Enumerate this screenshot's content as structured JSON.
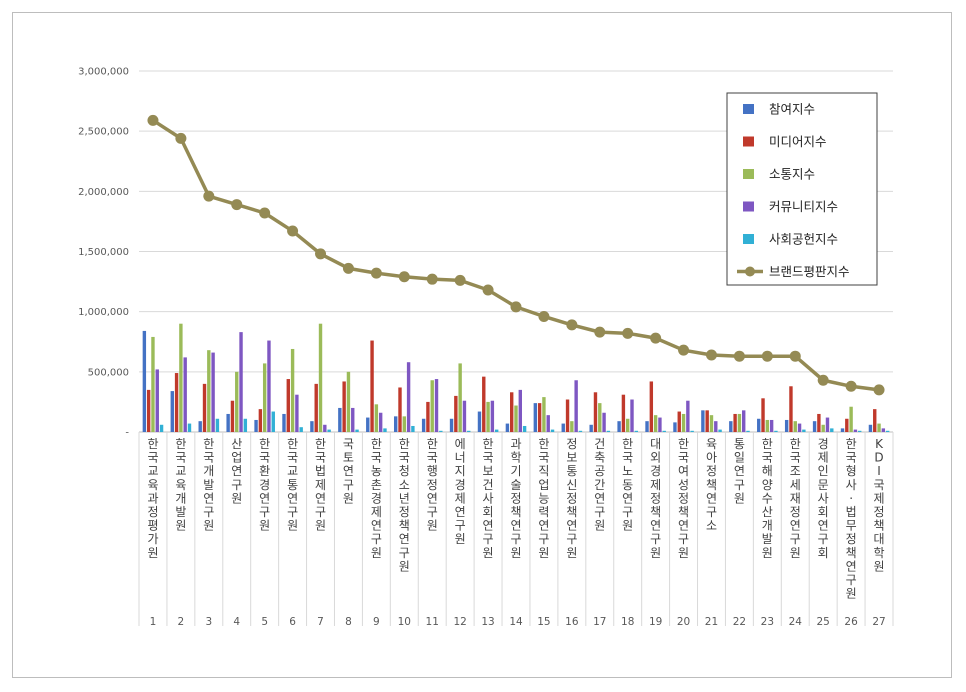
{
  "chart_data": {
    "type": "bar+line",
    "ylim": [
      0,
      3000000
    ],
    "yticks": [
      "-",
      "500,000",
      "1,000,000",
      "1,500,000",
      "2,000,000",
      "2,500,000",
      "3,000,000"
    ],
    "ytick_values": [
      0,
      500000,
      1000000,
      1500000,
      2000000,
      2500000,
      3000000
    ],
    "grid": true,
    "legend_position": "top-right",
    "categories": [
      "한국교육과정평가원",
      "한국교육개발원",
      "한국개발연구원",
      "산업연구원",
      "한국환경연구원",
      "한국교통연구원",
      "한국법제연구원",
      "국토연구원",
      "한국농촌경제연구원",
      "한국청소년정책연구원",
      "한국행정연구원",
      "에너지경제연구원",
      "한국보건사회연구원",
      "과학기술정책연구원",
      "한국직업능력연구원",
      "정보통신정책연구원",
      "건축공간연구원",
      "한국노동연구원",
      "대외경제정책연구원",
      "한국여성정책연구원",
      "육아정책연구소",
      "통일연구원",
      "한국해양수산개발원",
      "한국조세재정연구원",
      "경제인문사회연구회",
      "한국형사·법무정책연구원",
      "KDI국제정책대학원"
    ],
    "ranks": [
      "1",
      "2",
      "3",
      "4",
      "5",
      "6",
      "7",
      "8",
      "9",
      "10",
      "11",
      "12",
      "13",
      "14",
      "15",
      "16",
      "17",
      "18",
      "19",
      "20",
      "21",
      "22",
      "23",
      "24",
      "25",
      "26",
      "27"
    ],
    "series": [
      {
        "name": "참여지수",
        "type": "bar",
        "color": "#4472C4",
        "values": [
          840000,
          340000,
          90000,
          150000,
          100000,
          150000,
          90000,
          200000,
          120000,
          130000,
          110000,
          110000,
          170000,
          70000,
          240000,
          70000,
          60000,
          90000,
          90000,
          80000,
          180000,
          90000,
          110000,
          100000,
          90000,
          30000,
          60000
        ]
      },
      {
        "name": "미디어지수",
        "type": "bar",
        "color": "#C0392B",
        "values": [
          350000,
          490000,
          400000,
          260000,
          190000,
          440000,
          400000,
          420000,
          760000,
          370000,
          250000,
          300000,
          460000,
          330000,
          240000,
          270000,
          330000,
          310000,
          420000,
          170000,
          180000,
          150000,
          280000,
          380000,
          150000,
          110000,
          190000
        ]
      },
      {
        "name": "소통지수",
        "type": "bar",
        "color": "#9BBB59",
        "values": [
          790000,
          900000,
          680000,
          500000,
          570000,
          690000,
          900000,
          500000,
          230000,
          130000,
          430000,
          570000,
          250000,
          220000,
          290000,
          90000,
          240000,
          110000,
          140000,
          150000,
          140000,
          150000,
          100000,
          90000,
          60000,
          210000,
          70000
        ]
      },
      {
        "name": "커뮤니티지수",
        "type": "bar",
        "color": "#7E57C2",
        "values": [
          520000,
          620000,
          660000,
          830000,
          760000,
          310000,
          60000,
          200000,
          160000,
          580000,
          440000,
          260000,
          260000,
          350000,
          140000,
          430000,
          160000,
          270000,
          120000,
          260000,
          90000,
          180000,
          100000,
          70000,
          120000,
          20000,
          30000
        ]
      },
      {
        "name": "사회공헌지수",
        "type": "bar",
        "color": "#31B0D5",
        "values": [
          60000,
          70000,
          110000,
          110000,
          170000,
          40000,
          20000,
          20000,
          30000,
          50000,
          10000,
          10000,
          20000,
          50000,
          20000,
          10000,
          10000,
          10000,
          10000,
          10000,
          20000,
          10000,
          10000,
          20000,
          30000,
          10000,
          10000
        ]
      },
      {
        "name": "브랜드평판지수",
        "type": "line",
        "color": "#948A54",
        "values": [
          2590000,
          2440000,
          1960000,
          1890000,
          1820000,
          1670000,
          1480000,
          1360000,
          1320000,
          1290000,
          1270000,
          1260000,
          1180000,
          1040000,
          960000,
          890000,
          830000,
          820000,
          780000,
          680000,
          640000,
          630000,
          630000,
          630000,
          430000,
          380000,
          350000
        ]
      }
    ]
  }
}
